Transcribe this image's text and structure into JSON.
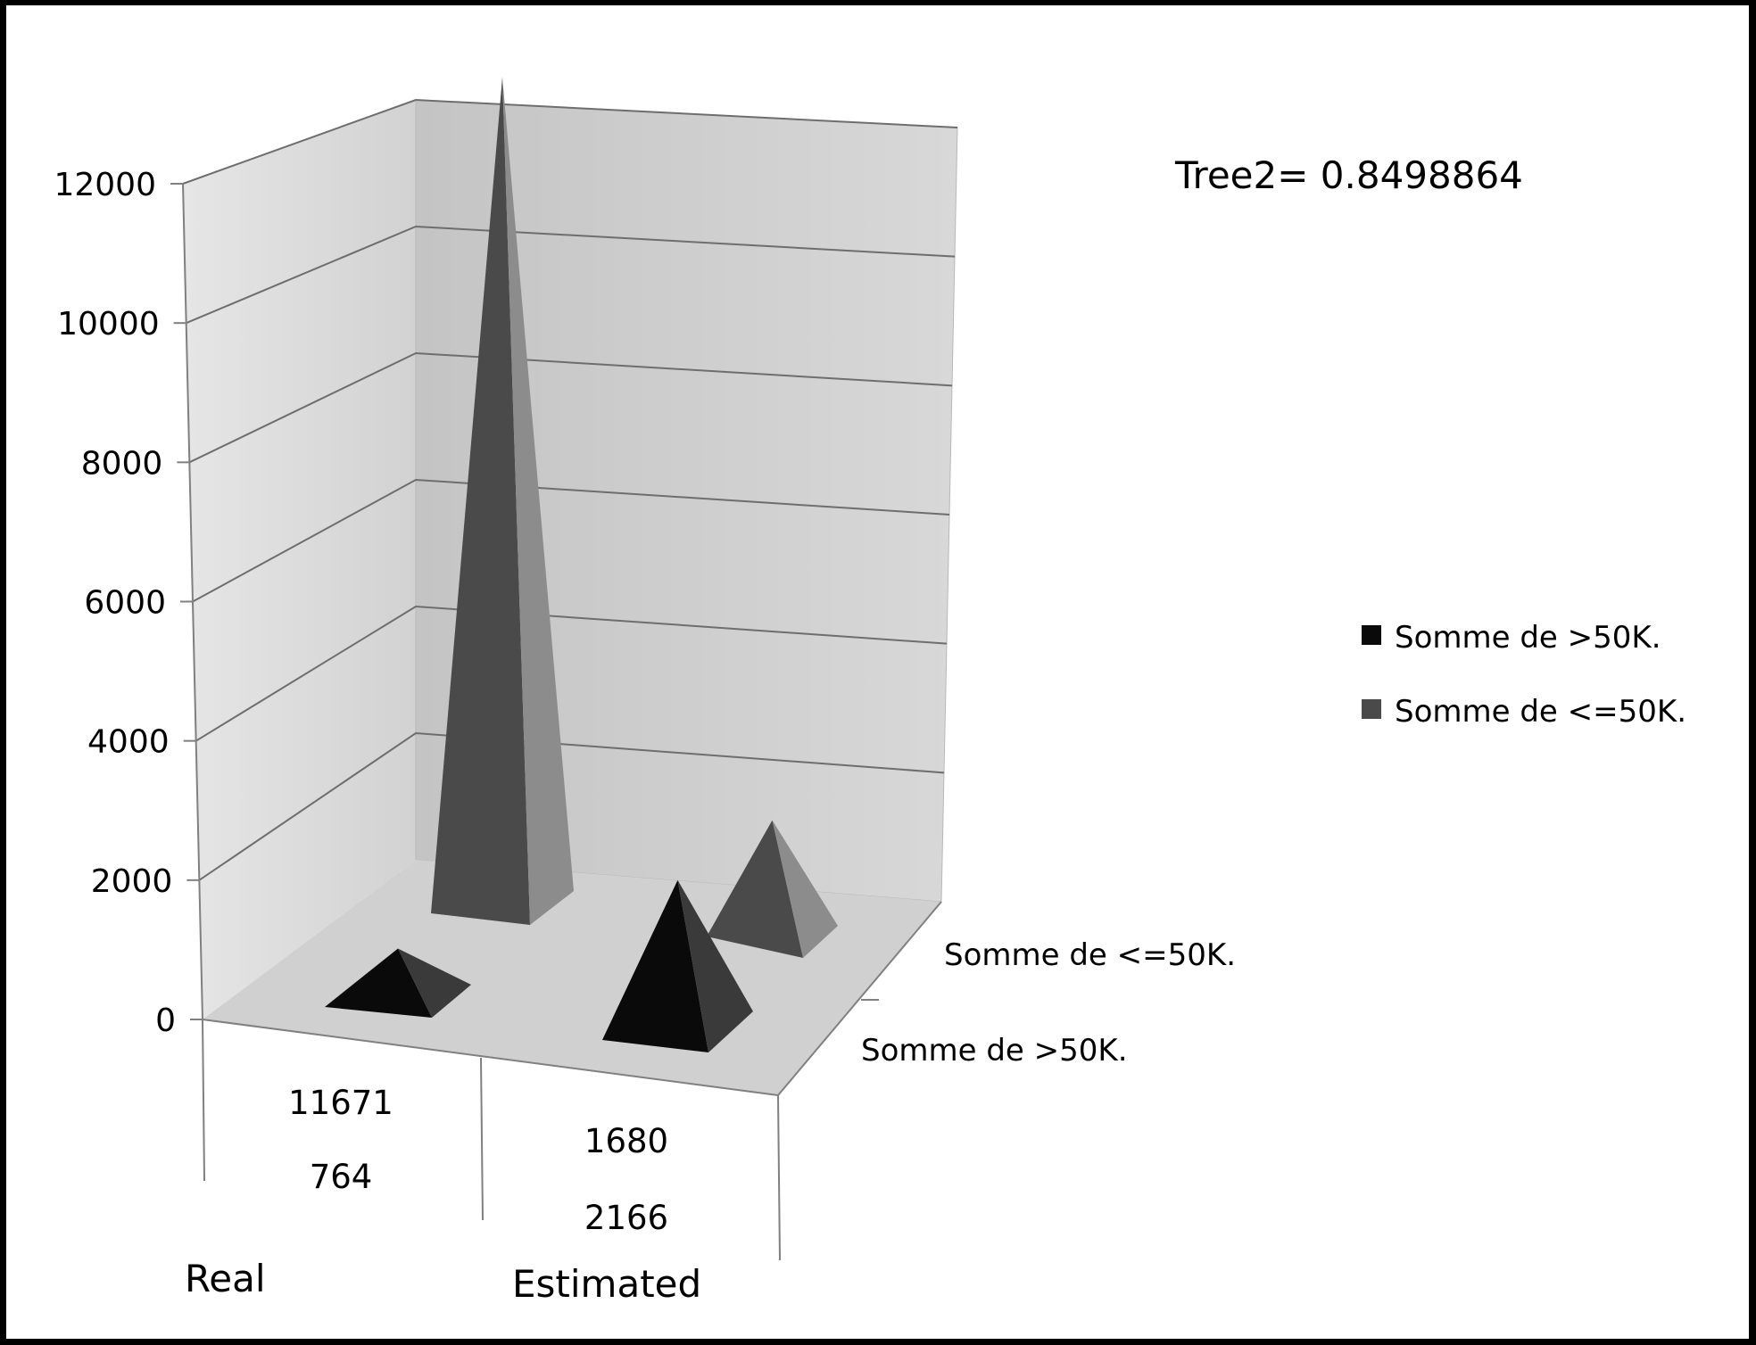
{
  "chart_data": {
    "type": "bar",
    "style": "3d-pyramid",
    "title": "",
    "annotation": "Tree2= 0.8498864",
    "categories": [
      "Real",
      "Estimated"
    ],
    "series": [
      {
        "name": "Somme de >50K.",
        "values": [
          764,
          2166
        ],
        "color": "#0a0a0a"
      },
      {
        "name": "Somme de <=50K.",
        "values": [
          11671,
          1680
        ],
        "color": "#4a4a4a"
      }
    ],
    "data_labels": {
      "Real": [
        "11671",
        "764"
      ],
      "Estimated": [
        "1680",
        "2166"
      ]
    },
    "yticks": [
      "0",
      "2000",
      "4000",
      "6000",
      "8000",
      "10000",
      "12000"
    ],
    "ylim": [
      0,
      12000
    ],
    "grid": true,
    "legend": {
      "placement": "right",
      "items": [
        {
          "label": "Somme de >50K.",
          "color": "#0a0a0a"
        },
        {
          "label": "Somme de <=50K.",
          "color": "#4a4a4a"
        }
      ]
    },
    "depth_labels": [
      "Somme de <=50K.",
      "Somme de >50K."
    ]
  }
}
